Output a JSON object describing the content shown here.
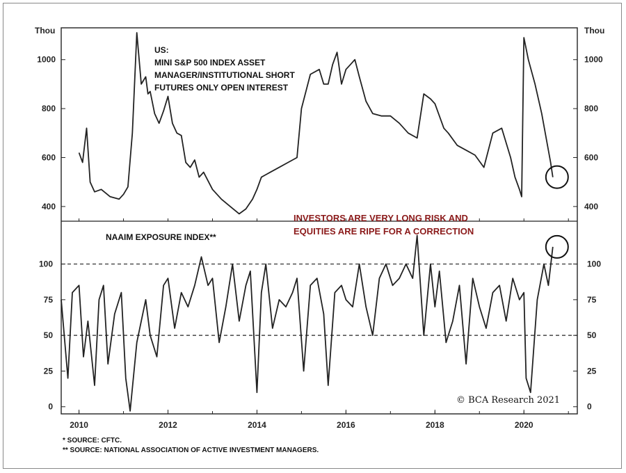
{
  "chart_data": [
    {
      "type": "line",
      "title": [
        "US:",
        "MINI S&P 500 INDEX ASSET",
        "MANAGER/INSTITUTIONAL SHORT",
        "FUTURES ONLY OPEN INTEREST"
      ],
      "unit_label": "Thou",
      "ylim": [
        340,
        1130
      ],
      "yticks": [
        400,
        600,
        800,
        1000
      ],
      "x": [
        2010.0,
        2010.08,
        2010.17,
        2010.25,
        2010.35,
        2010.5,
        2010.7,
        2010.9,
        2011.0,
        2011.1,
        2011.2,
        2011.3,
        2011.4,
        2011.5,
        2011.55,
        2011.6,
        2011.7,
        2011.8,
        2011.9,
        2012.0,
        2012.1,
        2012.2,
        2012.3,
        2012.4,
        2012.5,
        2012.6,
        2012.7,
        2012.8,
        2013.0,
        2013.2,
        2013.4,
        2013.6,
        2013.75,
        2013.9,
        2014.0,
        2014.1,
        2014.2,
        2014.3,
        2014.5,
        2014.7,
        2014.9,
        2015.0,
        2015.2,
        2015.4,
        2015.5,
        2015.6,
        2015.7,
        2015.8,
        2015.9,
        2016.0,
        2016.1,
        2016.2,
        2016.3,
        2016.45,
        2016.6,
        2016.8,
        2017.0,
        2017.2,
        2017.4,
        2017.6,
        2017.75,
        2017.9,
        2018.0,
        2018.2,
        2018.3,
        2018.5,
        2018.7,
        2018.9,
        2019.1,
        2019.3,
        2019.5,
        2019.7,
        2019.8,
        2019.9,
        2019.95,
        2020.0,
        2020.1,
        2020.25,
        2020.4,
        2020.5,
        2020.6,
        2020.65
      ],
      "y": [
        620,
        580,
        720,
        500,
        460,
        470,
        440,
        430,
        450,
        480,
        700,
        1110,
        900,
        930,
        860,
        870,
        780,
        740,
        790,
        850,
        740,
        700,
        690,
        580,
        560,
        590,
        520,
        540,
        470,
        430,
        400,
        370,
        390,
        430,
        470,
        520,
        530,
        540,
        560,
        580,
        600,
        800,
        940,
        960,
        900,
        900,
        980,
        1030,
        900,
        960,
        980,
        1000,
        930,
        830,
        780,
        770,
        770,
        740,
        700,
        680,
        860,
        840,
        820,
        720,
        700,
        650,
        630,
        610,
        560,
        700,
        720,
        600,
        520,
        470,
        440,
        1090,
        1000,
        900,
        780,
        680,
        580,
        520
      ],
      "annotations": [
        "INVESTORS ARE VERY LONG RISK AND",
        "EQUITIES ARE RIPE FOR A CORRECTION"
      ]
    },
    {
      "type": "line",
      "title": "NAAIM EXPOSURE INDEX**",
      "ylim": [
        -5,
        130
      ],
      "yticks": [
        0,
        25,
        50,
        75,
        100
      ],
      "reference_lines": [
        100,
        50
      ],
      "x": [
        2009.6,
        2009.75,
        2009.85,
        2010.0,
        2010.1,
        2010.2,
        2010.35,
        2010.45,
        2010.55,
        2010.65,
        2010.8,
        2010.95,
        2011.05,
        2011.15,
        2011.3,
        2011.4,
        2011.5,
        2011.6,
        2011.75,
        2011.9,
        2012.0,
        2012.15,
        2012.3,
        2012.45,
        2012.6,
        2012.75,
        2012.9,
        2013.0,
        2013.15,
        2013.3,
        2013.45,
        2013.6,
        2013.75,
        2013.85,
        2014.0,
        2014.1,
        2014.2,
        2014.35,
        2014.5,
        2014.65,
        2014.8,
        2014.9,
        2015.05,
        2015.2,
        2015.35,
        2015.5,
        2015.6,
        2015.75,
        2015.9,
        2016.0,
        2016.15,
        2016.3,
        2016.45,
        2016.6,
        2016.75,
        2016.9,
        2017.05,
        2017.2,
        2017.35,
        2017.5,
        2017.6,
        2017.75,
        2017.9,
        2018.0,
        2018.1,
        2018.25,
        2018.4,
        2018.55,
        2018.7,
        2018.85,
        2019.0,
        2019.15,
        2019.3,
        2019.45,
        2019.6,
        2019.75,
        2019.9,
        2020.0,
        2020.05,
        2020.15,
        2020.3,
        2020.45,
        2020.55,
        2020.65
      ],
      "y": [
        75,
        20,
        80,
        85,
        35,
        60,
        15,
        75,
        85,
        30,
        65,
        80,
        20,
        -3,
        45,
        60,
        75,
        50,
        35,
        85,
        90,
        55,
        80,
        70,
        85,
        105,
        85,
        90,
        45,
        70,
        100,
        60,
        85,
        95,
        10,
        80,
        100,
        55,
        75,
        70,
        80,
        90,
        25,
        85,
        90,
        65,
        15,
        80,
        85,
        75,
        70,
        100,
        70,
        50,
        90,
        100,
        85,
        90,
        100,
        90,
        120,
        50,
        100,
        70,
        95,
        45,
        60,
        85,
        30,
        90,
        70,
        55,
        80,
        85,
        60,
        90,
        75,
        80,
        20,
        10,
        75,
        100,
        85,
        112
      ],
      "copyright": "© BCA Research 2021"
    }
  ],
  "x_axis": {
    "tick_labels": [
      "2010",
      "2012",
      "2014",
      "2016",
      "2018",
      "2020"
    ]
  },
  "footnotes": [
    "*  SOURCE: CFTC.",
    "** SOURCE: NATIONAL ASSOCIATION OF ACTIVE INVESTMENT MANAGERS."
  ]
}
